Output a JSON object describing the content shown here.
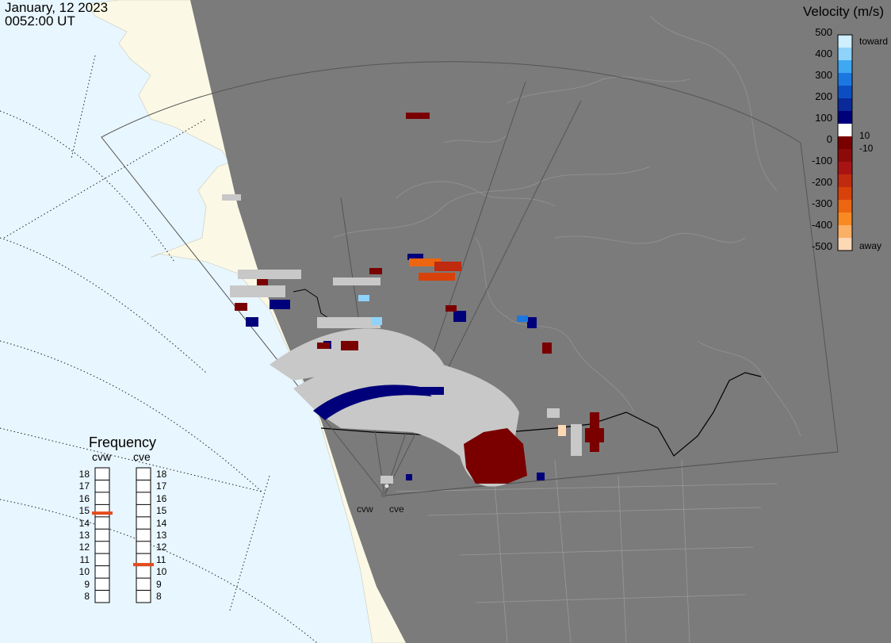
{
  "header": {
    "date": "January, 12 2023",
    "time": "0052:00 UT"
  },
  "colorbar": {
    "title": "Velocity (m/s)",
    "ticks": [
      "500",
      "400",
      "300",
      "200",
      "100",
      "0",
      "-100",
      "-200",
      "-300",
      "-400",
      "-500"
    ],
    "side_labels": {
      "toward": "toward",
      "away": "away",
      "pos_thresh": "10",
      "neg_thresh": "-10"
    },
    "colors": [
      "#cfeefe",
      "#8fd3fb",
      "#3ea8f3",
      "#1b78e0",
      "#0c4ec2",
      "#0a2a9a",
      "#00007a",
      "#ffffff",
      "#7a0000",
      "#8c0a0a",
      "#a81414",
      "#c02a0e",
      "#d8420a",
      "#ec6510",
      "#f88a24",
      "#fbb067",
      "#fdd8b5"
    ]
  },
  "frequency": {
    "title": "Frequency",
    "radars": [
      "cvw",
      "cve"
    ],
    "scale": [
      "18",
      "17",
      "16",
      "15",
      "14",
      "13",
      "12",
      "11",
      "10",
      "9",
      "8"
    ],
    "cvw_mhz": 14.8,
    "cve_mhz": 10.6,
    "marker_color": "#e34a1c"
  },
  "sites": [
    "cvw",
    "cve"
  ],
  "map_colors": {
    "ocean": "#e8f6ff",
    "land": "#fbf9e6",
    "night": "#7b7b7b",
    "gray_scatter": "#c8c8c8"
  }
}
